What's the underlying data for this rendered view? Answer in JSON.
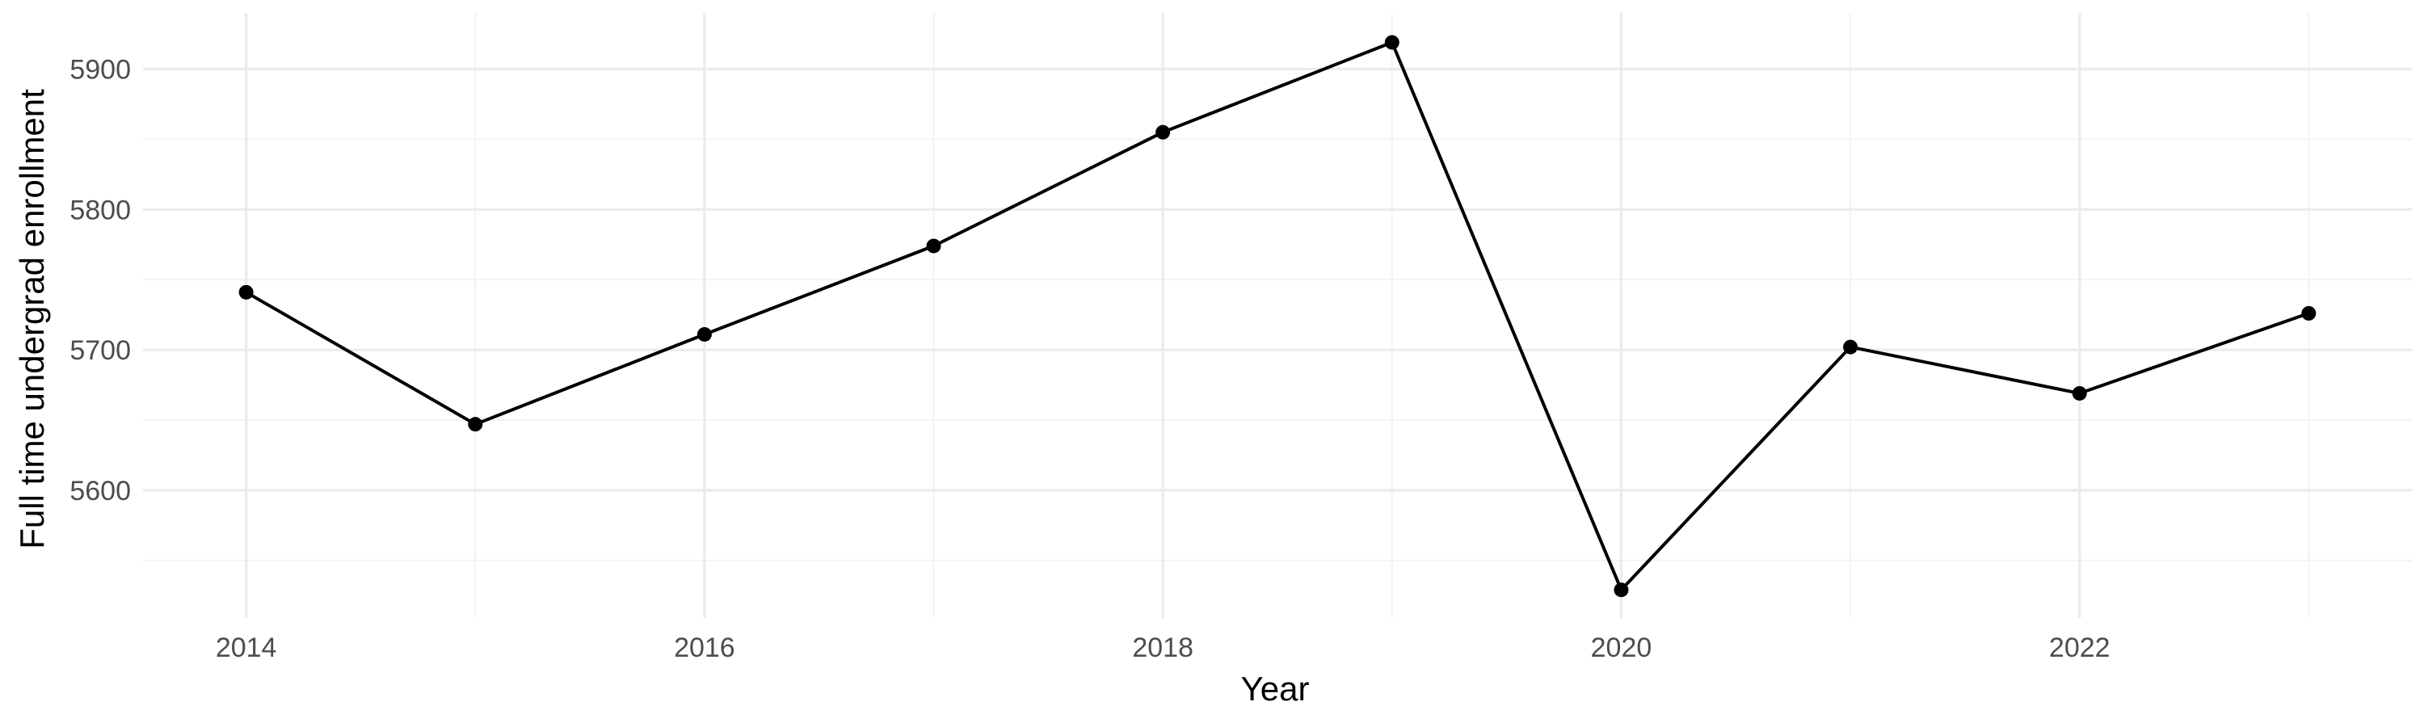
{
  "chart_data": {
    "type": "line",
    "title": "",
    "xlabel": "Year",
    "ylabel": "Full time undergrad enrollment",
    "x": [
      2014,
      2015,
      2016,
      2017,
      2018,
      2019,
      2020,
      2021,
      2022,
      2023
    ],
    "series": [
      {
        "values": [
          5741,
          5647,
          5711,
          5774,
          5855,
          5919,
          5529,
          5702,
          5669,
          5726
        ],
        "color": "#000000"
      }
    ],
    "xlim": [
      2013.55,
      2023.45
    ],
    "ylim": [
      5509,
      5940
    ],
    "x_ticks": [
      "2014",
      "2016",
      "2018",
      "2020",
      "2022"
    ],
    "y_ticks": [
      "5600",
      "5700",
      "5800",
      "5900"
    ],
    "grid": true,
    "legend": "none"
  }
}
